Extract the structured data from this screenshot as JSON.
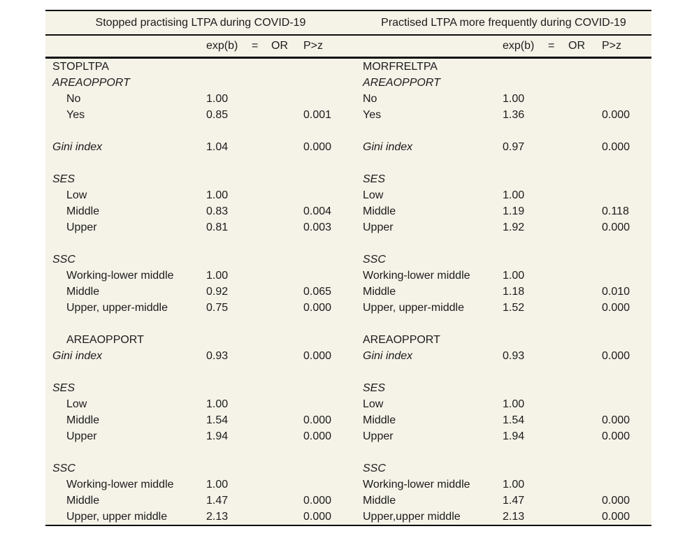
{
  "table": {
    "background_color": "#f5f2e8",
    "rule_color": "#0d0d0d",
    "column_headers": [
      "exp(b)",
      "=",
      "OR",
      "P>z"
    ],
    "panels": [
      {
        "title": "Stopped practising LTPA during COVID-19",
        "rows": [
          {
            "label": "STOPLTPA"
          },
          {
            "label": "AREAOPPORT",
            "style": "italic"
          },
          {
            "label": "No",
            "indent": 1,
            "exp_b": "1.00"
          },
          {
            "label": "Yes",
            "indent": 1,
            "exp_b": "0.85",
            "p": "0.001"
          },
          {
            "blank": true
          },
          {
            "label": "Gini index",
            "style": "italic",
            "exp_b": "1.04",
            "p": "0.000"
          },
          {
            "blank": true
          },
          {
            "label": "SES",
            "style": "italic"
          },
          {
            "label": "Low",
            "indent": 1,
            "exp_b": "1.00"
          },
          {
            "label": "Middle",
            "indent": 1,
            "exp_b": "0.83",
            "p": "0.004"
          },
          {
            "label": "Upper",
            "indent": 1,
            "exp_b": "0.81",
            "p": "0.003"
          },
          {
            "blank": true
          },
          {
            "label": "SSC",
            "style": "italic"
          },
          {
            "label": "Working-lower middle",
            "indent": 1,
            "exp_b": "1.00"
          },
          {
            "label": "Middle",
            "indent": 1,
            "exp_b": "0.92",
            "p": "0.065"
          },
          {
            "label": "Upper, upper-middle",
            "indent": 1,
            "exp_b": "0.75",
            "p": "0.000"
          },
          {
            "blank": true
          },
          {
            "label": "AREAOPPORT",
            "indent": 1
          },
          {
            "label": "Gini index",
            "style": "italic",
            "exp_b": "0.93",
            "p": "0.000"
          },
          {
            "blank": true
          },
          {
            "label": "SES",
            "style": "italic"
          },
          {
            "label": "Low",
            "indent": 1,
            "exp_b": "1.00"
          },
          {
            "label": "Middle",
            "indent": 1,
            "exp_b": "1.54",
            "p": "0.000"
          },
          {
            "label": "Upper",
            "indent": 1,
            "exp_b": "1.94",
            "p": "0.000"
          },
          {
            "blank": true
          },
          {
            "label": "SSC",
            "style": "italic"
          },
          {
            "label": "Working-lower middle",
            "indent": 1,
            "exp_b": "1.00"
          },
          {
            "label": "Middle",
            "indent": 1,
            "exp_b": "1.47",
            "p": "0.000"
          },
          {
            "label": "Upper, upper middle",
            "indent": 1,
            "exp_b": "2.13",
            "p": "0.000"
          }
        ]
      },
      {
        "title": "Practised LTPA more frequently during COVID-19",
        "rows": [
          {
            "label": "MORFRELTPA"
          },
          {
            "label": "AREAOPPORT",
            "style": "italic"
          },
          {
            "label": "No",
            "exp_b": "1.00"
          },
          {
            "label": "Yes",
            "exp_b": "1.36",
            "p": "0.000"
          },
          {
            "blank": true
          },
          {
            "label": "Gini index",
            "style": "italic",
            "exp_b": "0.97",
            "p": "0.000"
          },
          {
            "blank": true
          },
          {
            "label": "SES",
            "style": "italic"
          },
          {
            "label": "Low",
            "exp_b": "1.00"
          },
          {
            "label": "Middle",
            "exp_b": "1.19",
            "p": "0.118"
          },
          {
            "label": "Upper",
            "exp_b": "1.92",
            "p": "0.000"
          },
          {
            "blank": true
          },
          {
            "label": "SSC",
            "style": "italic"
          },
          {
            "label": "Working-lower middle",
            "exp_b": "1.00"
          },
          {
            "label": "Middle",
            "exp_b": "1.18",
            "p": "0.010"
          },
          {
            "label": "Upper, upper-middle",
            "exp_b": "1.52",
            "p": "0.000"
          },
          {
            "blank": true
          },
          {
            "label": "AREAOPPORT"
          },
          {
            "label": "Gini index",
            "style": "italic",
            "exp_b": "0.93",
            "p": "0.000"
          },
          {
            "blank": true
          },
          {
            "label": "SES",
            "style": "italic"
          },
          {
            "label": "Low",
            "exp_b": "1.00"
          },
          {
            "label": "Middle",
            "exp_b": "1.54",
            "p": "0.000"
          },
          {
            "label": "Upper",
            "exp_b": "1.94",
            "p": "0.000"
          },
          {
            "blank": true
          },
          {
            "label": "SSC",
            "style": "italic"
          },
          {
            "label": "Working-lower middle",
            "exp_b": "1.00"
          },
          {
            "label": "Middle",
            "exp_b": "1.47",
            "p": "0.000"
          },
          {
            "label": "Upper,upper middle",
            "exp_b": "2.13",
            "p": "0.000"
          }
        ]
      }
    ]
  }
}
